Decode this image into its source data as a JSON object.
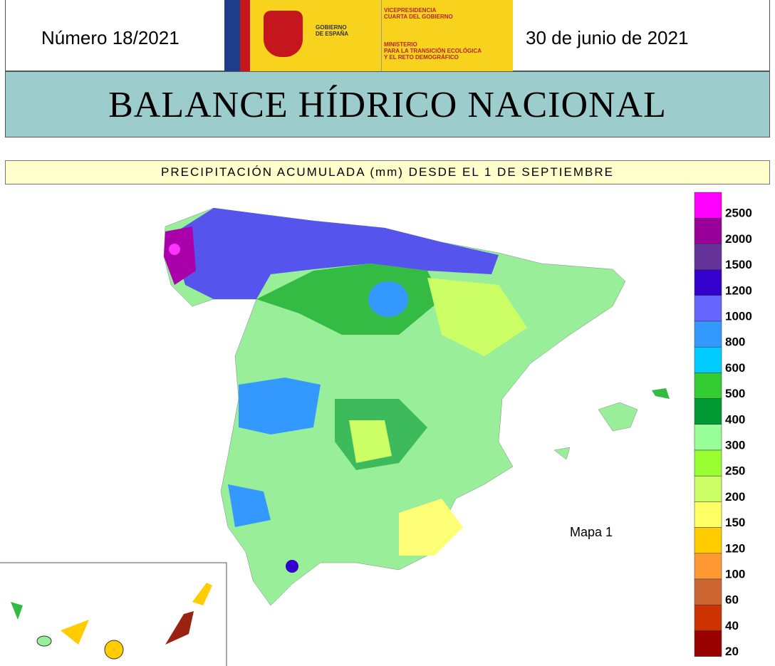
{
  "header": {
    "number": "Número 18/2021",
    "date": "30 de junio de 2021",
    "logo": {
      "government": [
        "GOBIERNO",
        "DE ESPAÑA"
      ],
      "vice": [
        "VICEPRESIDENCIA",
        "CUARTA DEL GOBIERNO"
      ],
      "ministry": [
        "MINISTERIO",
        "PARA LA TRANSICIÓN ECOLÓGICA",
        "Y EL RETO DEMOGRÁFICO"
      ]
    }
  },
  "title": "BALANCE HÍDRICO NACIONAL",
  "subtitle": "PRECIPITACIÓN ACUMULADA (mm) DESDE EL 1 DE SEPTIEMBRE",
  "map": {
    "label": "Mapa 1"
  },
  "legend": [
    {
      "value": 2500,
      "color": "#ff00ff"
    },
    {
      "value": 2000,
      "color": "#990099"
    },
    {
      "value": 1500,
      "color": "#663399"
    },
    {
      "value": 1200,
      "color": "#3300cc"
    },
    {
      "value": 1000,
      "color": "#6666ff"
    },
    {
      "value": 800,
      "color": "#3399ff"
    },
    {
      "value": 600,
      "color": "#00ccff"
    },
    {
      "value": 500,
      "color": "#33cc33"
    },
    {
      "value": 400,
      "color": "#009933"
    },
    {
      "value": 300,
      "color": "#99ff99"
    },
    {
      "value": 250,
      "color": "#99ff33"
    },
    {
      "value": 200,
      "color": "#ccff66"
    },
    {
      "value": 150,
      "color": "#ffff66"
    },
    {
      "value": 120,
      "color": "#ffcc00"
    },
    {
      "value": 100,
      "color": "#ff9933"
    },
    {
      "value": 60,
      "color": "#cc6633"
    },
    {
      "value": 40,
      "color": "#cc3300"
    },
    {
      "value": 20,
      "color": "#990000"
    }
  ]
}
